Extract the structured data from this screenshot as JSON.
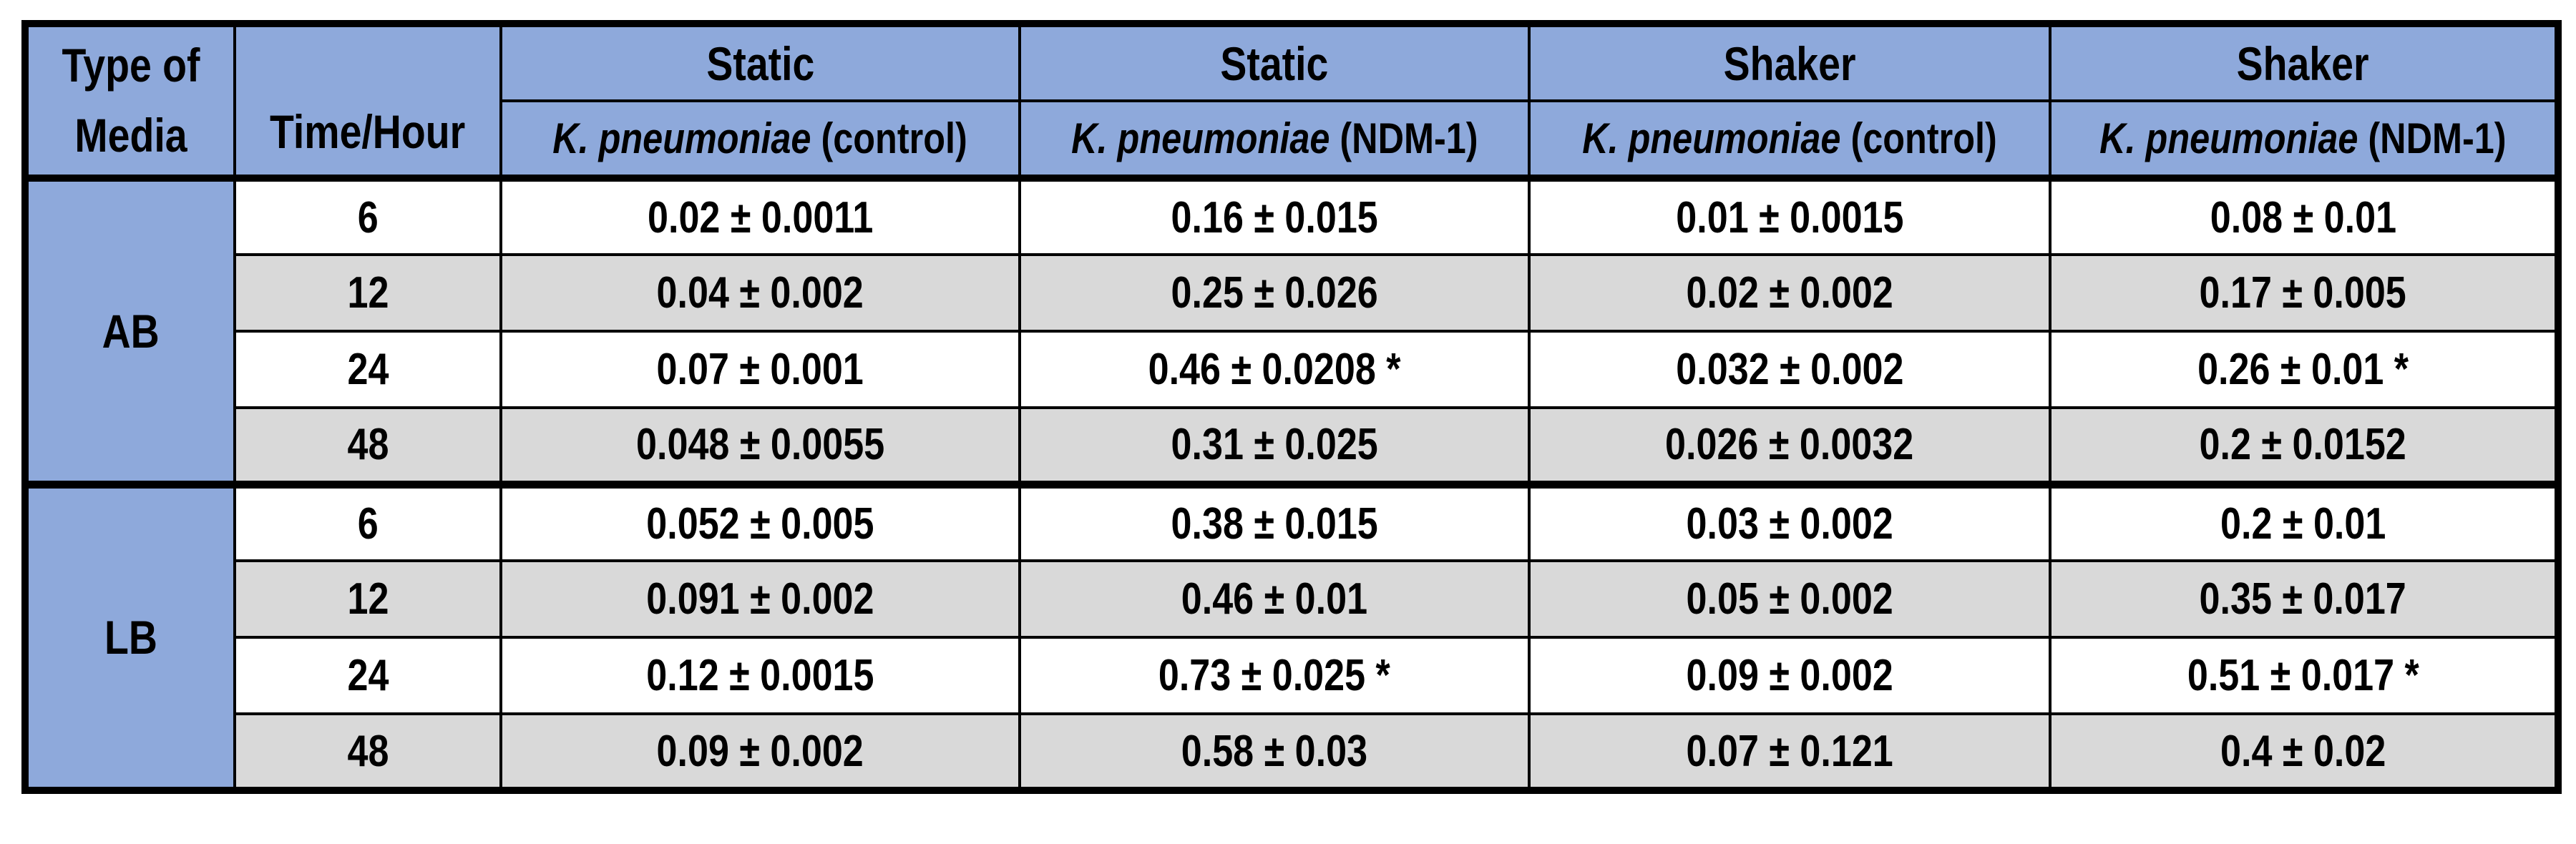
{
  "colors": {
    "header_blue": "#8EA9DB",
    "row_gray": "#D9D9D9",
    "row_white": "#FFFFFF",
    "border": "#000000"
  },
  "table": {
    "header": {
      "media_label": "Type of Media",
      "time_label": "Time/Hour",
      "groups": [
        "Static",
        "Static",
        "Shaker",
        "Shaker"
      ],
      "sub": [
        {
          "species": "K. pneumoniae",
          "cond": "(control)"
        },
        {
          "species": "K. pneumoniae",
          "cond": "(NDM-1)"
        },
        {
          "species": "K. pneumoniae",
          "cond": "(control)"
        },
        {
          "species": "K. pneumoniae",
          "cond": "(NDM-1)"
        }
      ]
    },
    "sections": [
      {
        "media": "AB",
        "rows": [
          {
            "time": "6",
            "cells": [
              "0.02 ± 0.0011",
              "0.16 ± 0.015",
              "0.01 ± 0.0015",
              "0.08 ± 0.01"
            ]
          },
          {
            "time": "12",
            "cells": [
              "0.04 ± 0.002",
              "0.25 ± 0.026",
              "0.02 ± 0.002",
              "0.17 ± 0.005"
            ]
          },
          {
            "time": "24",
            "cells": [
              "0.07 ± 0.001",
              "0.46 ± 0.0208 *",
              "0.032 ± 0.002",
              "0.26 ± 0.01 *"
            ]
          },
          {
            "time": "48",
            "cells": [
              "0.048 ± 0.0055",
              "0.31 ± 0.025",
              "0.026 ± 0.0032",
              "0.2 ± 0.0152"
            ]
          }
        ]
      },
      {
        "media": "LB",
        "rows": [
          {
            "time": "6",
            "cells": [
              "0.052 ± 0.005",
              "0.38 ± 0.015",
              "0.03 ± 0.002",
              "0.2 ± 0.01"
            ]
          },
          {
            "time": "12",
            "cells": [
              "0.091 ± 0.002",
              "0.46 ± 0.01",
              "0.05 ± 0.002",
              "0.35 ± 0.017"
            ]
          },
          {
            "time": "24",
            "cells": [
              "0.12 ± 0.0015",
              "0.73 ± 0.025 *",
              "0.09 ± 0.002",
              "0.51 ± 0.017 *"
            ]
          },
          {
            "time": "48",
            "cells": [
              "0.09 ± 0.002",
              "0.58 ± 0.03",
              "0.07 ± 0.121",
              "0.4 ± 0.02"
            ]
          }
        ]
      }
    ]
  },
  "chart_data": {
    "type": "table",
    "columns": [
      "Type of Media",
      "Time/Hour",
      "Static K. pneumoniae (control)",
      "Static K. pneumoniae (NDM-1)",
      "Shaker K. pneumoniae (control)",
      "Shaker K. pneumoniae (NDM-1)"
    ],
    "rows": [
      [
        "AB",
        "6",
        "0.02 ± 0.0011",
        "0.16 ± 0.015",
        "0.01 ± 0.0015",
        "0.08 ± 0.01"
      ],
      [
        "AB",
        "12",
        "0.04 ± 0.002",
        "0.25 ± 0.026",
        "0.02 ± 0.002",
        "0.17 ± 0.005"
      ],
      [
        "AB",
        "24",
        "0.07 ± 0.001",
        "0.46 ± 0.0208 *",
        "0.032 ± 0.002",
        "0.26 ± 0.01 *"
      ],
      [
        "AB",
        "48",
        "0.048 ± 0.0055",
        "0.31 ± 0.025",
        "0.026 ± 0.0032",
        "0.2 ± 0.0152"
      ],
      [
        "LB",
        "6",
        "0.052 ± 0.005",
        "0.38 ± 0.015",
        "0.03 ± 0.002",
        "0.2 ± 0.01"
      ],
      [
        "LB",
        "12",
        "0.091 ± 0.002",
        "0.46 ± 0.01",
        "0.05 ± 0.002",
        "0.35 ± 0.017"
      ],
      [
        "LB",
        "24",
        "0.12 ± 0.0015",
        "0.73 ± 0.025 *",
        "0.09 ± 0.002",
        "0.51 ± 0.017 *"
      ],
      [
        "LB",
        "48",
        "0.09 ± 0.002",
        "0.58 ± 0.03",
        "0.07 ± 0.121",
        "0.4 ± 0.02"
      ]
    ]
  }
}
